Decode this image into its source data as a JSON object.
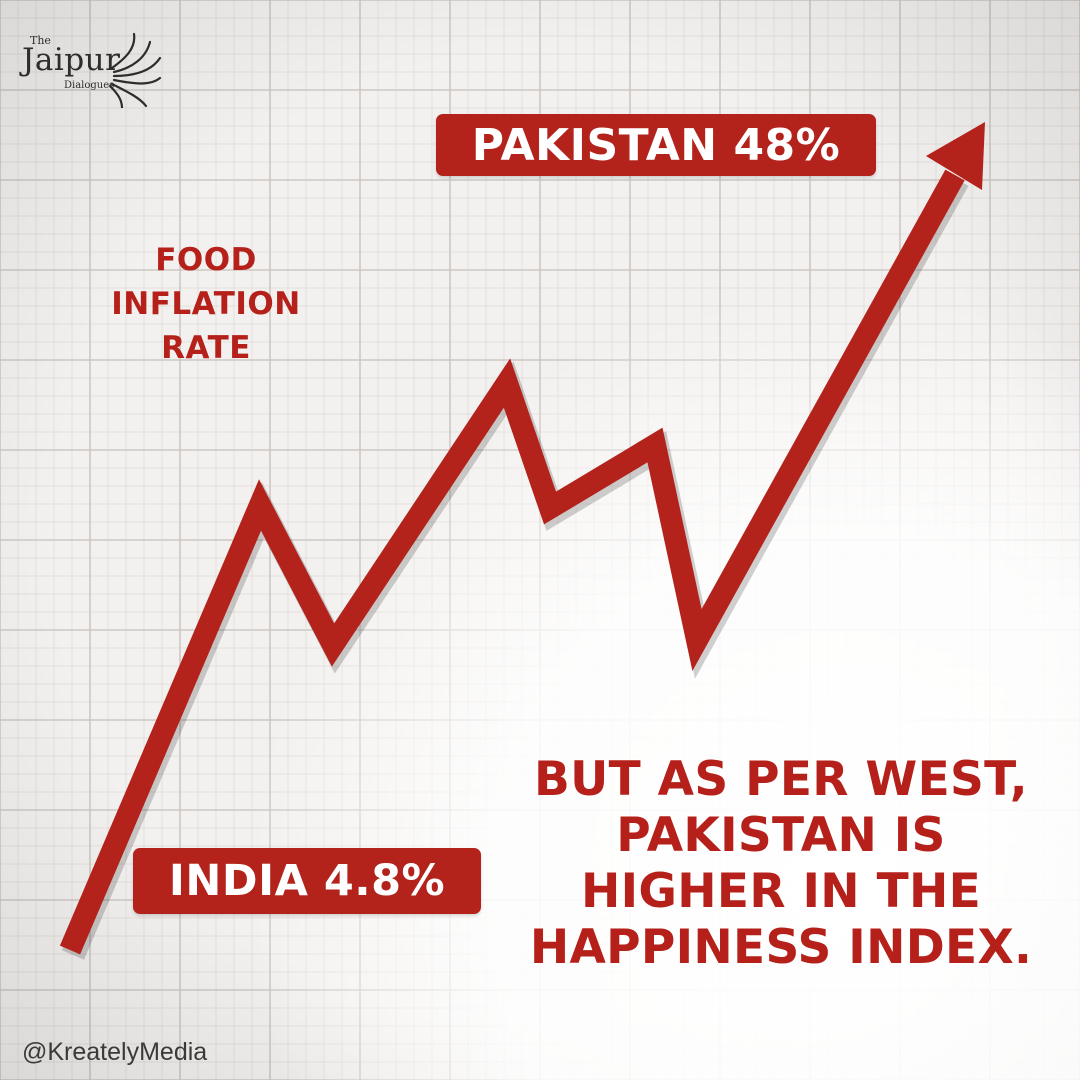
{
  "brand": {
    "logo_small": "The",
    "logo_main": "Jaipur",
    "logo_sub": "Dialogues",
    "logo_icon": "sun-icon",
    "handle": "@KreatelyMedia"
  },
  "chart_data": {
    "type": "line",
    "title": [
      "FOOD",
      "INFLATION",
      "RATE"
    ],
    "grid": true,
    "accent_color": "#b3221b",
    "annotations": {
      "start": {
        "country": "INDIA",
        "value": 4.8,
        "label": "INDIA 4.8%"
      },
      "end": {
        "country": "PAKISTAN",
        "value": 48,
        "label": "PAKISTAN 48%"
      }
    }
  },
  "claim": [
    "BUT AS PER WEST,",
    "PAKISTAN IS",
    "HIGHER IN THE",
    "HAPPINESS INDEX."
  ],
  "colors": {
    "accent": "#b3221b",
    "background": "#f3f1ef",
    "grid": "#cbc4c0"
  }
}
